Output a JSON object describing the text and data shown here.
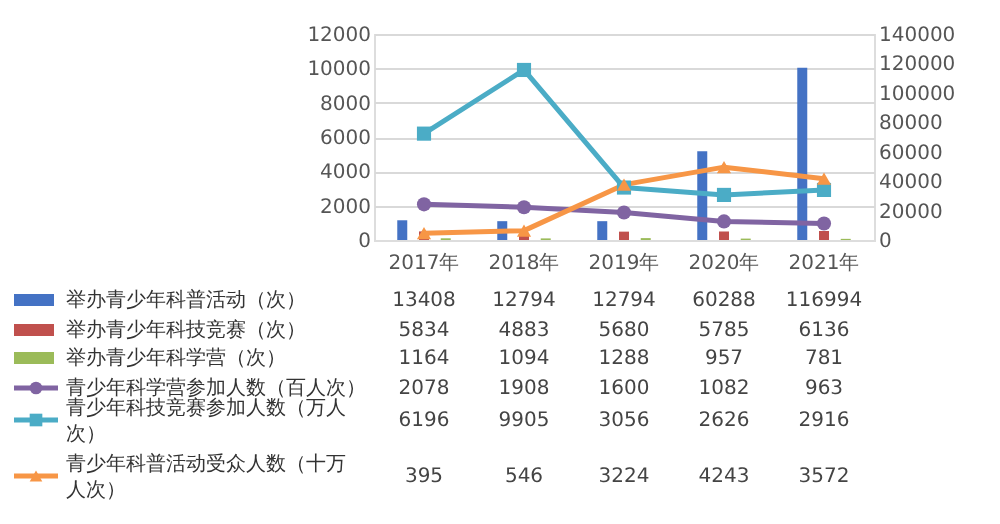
{
  "chart_data": {
    "type": "bar",
    "categories": [
      "2017年",
      "2018年",
      "2019年",
      "2020年",
      "2021年"
    ],
    "series": [
      {
        "name": "举办青少年科普活动（次）",
        "type": "bar",
        "axis": "y2",
        "color": "#4472c4",
        "values": [
          13408,
          12794,
          12794,
          60288,
          116994
        ]
      },
      {
        "name": "举办青少年科技竞赛（次）",
        "type": "bar",
        "axis": "y2",
        "color": "#c0504d",
        "values": [
          5834,
          4883,
          5680,
          5785,
          6136
        ]
      },
      {
        "name": "举办青少年科学营（次）",
        "type": "bar",
        "axis": "y2",
        "color": "#9bbb59",
        "values": [
          1164,
          1094,
          1288,
          957,
          781
        ]
      },
      {
        "name": "青少年科学营参加人数（百人次）",
        "type": "line",
        "marker": "circle",
        "color": "#8064a2",
        "values": [
          2078,
          1908,
          1600,
          1082,
          963
        ]
      },
      {
        "name": "青少年科技竞赛参加人数（万人次）",
        "type": "line",
        "marker": "square",
        "color": "#4bacc6",
        "values": [
          6196,
          9905,
          3056,
          2626,
          2916
        ]
      },
      {
        "name": "青少年科普活动受众人数（十万人次）",
        "type": "line",
        "marker": "triangle",
        "color": "#f79646",
        "values": [
          395,
          546,
          3224,
          4243,
          3572
        ]
      }
    ],
    "ylim": [
      0,
      12000
    ],
    "yticks": [
      0,
      2000,
      4000,
      6000,
      8000,
      10000,
      12000
    ],
    "y2lim": [
      0,
      140000
    ],
    "y2ticks": [
      0,
      20000,
      40000,
      60000,
      80000,
      100000,
      120000,
      140000
    ],
    "grid": "y",
    "legend": "bottom",
    "data_labels": true
  }
}
